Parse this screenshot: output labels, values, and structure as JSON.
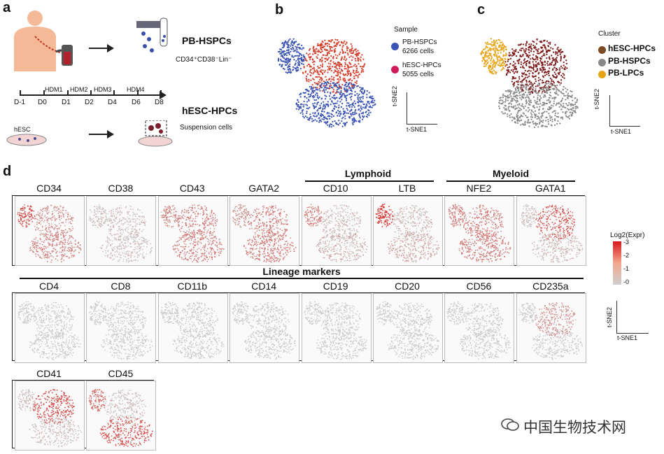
{
  "panel_a": {
    "label": "a",
    "pb_title": "PB-HSPCs",
    "pb_marker": "CD34⁺CD38⁻Lin⁻",
    "timeline": [
      "D-1",
      "D0",
      "D1",
      "D2",
      "D4",
      "D6",
      "D8"
    ],
    "stages": [
      "HDM1",
      "HDM2",
      "HDM3",
      "HDM4"
    ],
    "hesc_title": "hESC-HPCs",
    "hesc_sub": "Suspension cells",
    "hesc_dish_label": "hESC"
  },
  "panel_b": {
    "label": "b",
    "legend_title": "Sample",
    "items": [
      {
        "name": "PB-HSPCs",
        "count": "6266 cells",
        "color": "#3b55b4"
      },
      {
        "name": "hESC-HPCs",
        "count": "5055 cells",
        "color": "#d01b5c"
      }
    ],
    "axis_x": "t-SNE1",
    "axis_y": "t-SNE2"
  },
  "panel_c": {
    "label": "c",
    "legend_title": "Cluster",
    "items": [
      {
        "name": "hESC-HPCs",
        "color": "#7a4a22"
      },
      {
        "name": "PB-HSPCs",
        "color": "#888888"
      },
      {
        "name": "PB-LPCs",
        "color": "#e8a417"
      }
    ],
    "axis_x": "t-SNE1",
    "axis_y": "t-SNE2"
  },
  "panel_d": {
    "label": "d",
    "row1_groups": [
      "Lymphoid",
      "Myeloid"
    ],
    "row1": [
      "CD34",
      "CD38",
      "CD43",
      "GATA2",
      "CD10",
      "LTB",
      "NFE2",
      "GATA1"
    ],
    "row2_title": "Lineage markers",
    "row2": [
      "CD4",
      "CD8",
      "CD11b",
      "CD14",
      "CD19",
      "CD20",
      "CD56",
      "CD235a"
    ],
    "row3": [
      "CD41",
      "CD45"
    ],
    "scale_title": "Log2(Expr)",
    "scale_ticks": [
      "3",
      "2",
      "1",
      "0"
    ],
    "axis_x": "t-SNE1",
    "axis_y": "t-SNE2"
  },
  "watermark": "中国生物技术网"
}
